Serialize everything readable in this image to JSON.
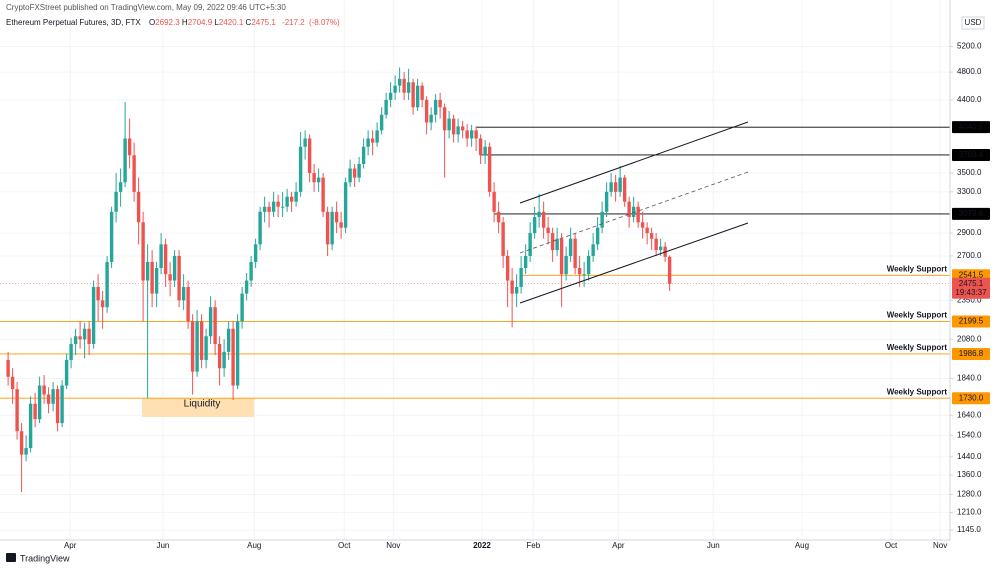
{
  "chart_data": {
    "type": "candlestick",
    "publisher": "CryptoFXStreet published on TradingView.com, May 09, 2022 09:46 UTC+5:30",
    "symbol": "Ethereum Perpetual Futures, 3D, FTX",
    "ohlc_prefixes": [
      "O",
      "H",
      "L",
      "C"
    ],
    "change": -217.2,
    "change_pct_label": "(-8.07%)",
    "currency": "USD",
    "countdown": "19:43:37",
    "logo": "TradingView",
    "annotation_box": "Liquidity",
    "up_color": "#26a69a",
    "down_color": "#ef5350",
    "log_scale": true,
    "grid": true,
    "open": [
      1950,
      1850,
      1780,
      1560,
      1450,
      1480,
      1700,
      1620,
      1800,
      1750,
      1700,
      1780,
      1600,
      1800,
      1950,
      2050,
      2100,
      2080,
      2150,
      2050,
      2450,
      2350,
      2300,
      2650,
      3100,
      3300,
      3400,
      3900,
      3700,
      3300,
      3000,
      2500,
      2650,
      2400,
      2600,
      2800,
      2550,
      2500,
      2700,
      2350,
      2450,
      2200,
      1880,
      2200,
      1950,
      2100,
      2300,
      2050,
      1900,
      2000,
      2150,
      1800,
      2200,
      2400,
      2500,
      2650,
      2800,
      3100,
      3150,
      3100,
      3200,
      3150,
      3150,
      3250,
      3200,
      3300,
      3800,
      3900,
      3500,
      3400,
      3450,
      3100,
      2800,
      3100,
      3000,
      2950,
      3400,
      3550,
      3450,
      3600,
      3800,
      3900,
      3850,
      4000,
      4200,
      4400,
      4500,
      4600,
      4700,
      4500,
      4650,
      4300,
      4600,
      4400,
      4100,
      4200,
      4400,
      4300,
      4000,
      4150,
      3950,
      4050,
      4000,
      3900,
      4000,
      3900,
      3700,
      3800,
      3300,
      3100,
      3000,
      2700,
      2500,
      2400,
      2450,
      2600,
      2700,
      2900,
      3050,
      3100,
      2950,
      2900,
      2750,
      2850,
      2550,
      2700,
      2850,
      2600,
      2550,
      2550,
      2700,
      2800,
      2950,
      3100,
      3300,
      3400,
      3300,
      3450,
      3200,
      3050,
      3150,
      3000,
      2950,
      2900,
      2850,
      2750,
      2780,
      2692.3
    ],
    "high": [
      2000,
      1900,
      1820,
      1600,
      1540,
      1740,
      1760,
      1850,
      1860,
      1790,
      1820,
      1800,
      1830,
      1990,
      2090,
      2150,
      2200,
      2190,
      2200,
      2500,
      2550,
      2420,
      2700,
      3150,
      3500,
      3550,
      4370,
      4150,
      3850,
      3450,
      3100,
      2800,
      2750,
      2650,
      2900,
      2850,
      2650,
      2750,
      2750,
      2550,
      2500,
      2250,
      2280,
      2250,
      2150,
      2380,
      2350,
      2100,
      2080,
      2200,
      2200,
      2250,
      2450,
      2560,
      2700,
      2850,
      3150,
      3250,
      3200,
      3300,
      3270,
      3300,
      3330,
      3300,
      3400,
      3980,
      4000,
      3950,
      3600,
      3550,
      3500,
      3150,
      3150,
      3200,
      3100,
      3450,
      3650,
      3600,
      3680,
      3900,
      4000,
      4000,
      4100,
      4300,
      4500,
      4650,
      4750,
      4870,
      4800,
      4850,
      4700,
      4700,
      4650,
      4450,
      4300,
      4480,
      4500,
      4350,
      4250,
      4200,
      4150,
      4120,
      4080,
      4070,
      4050,
      3950,
      3880,
      3850,
      3400,
      3200,
      3050,
      2750,
      2600,
      2550,
      2700,
      2800,
      3000,
      3150,
      3280,
      3200,
      3050,
      2950,
      2950,
      2900,
      2780,
      2950,
      2900,
      2700,
      2650,
      2750,
      2900,
      3050,
      3200,
      3400,
      3500,
      3480,
      3580,
      3480,
      3250,
      3250,
      3200,
      3100,
      3000,
      2950,
      2900,
      2850,
      2820,
      2704.9
    ],
    "low": [
      1800,
      1700,
      1520,
      1290,
      1420,
      1460,
      1580,
      1600,
      1700,
      1650,
      1660,
      1560,
      1580,
      1780,
      1900,
      1980,
      2020,
      1960,
      1980,
      2020,
      2200,
      2150,
      2260,
      2600,
      3000,
      3150,
      3350,
      3550,
      3200,
      2800,
      2200,
      1730,
      2300,
      2300,
      2550,
      2450,
      2380,
      2450,
      2300,
      2280,
      2150,
      1750,
      1850,
      1900,
      1900,
      2050,
      1980,
      1800,
      1850,
      1950,
      1720,
      1780,
      2150,
      2350,
      2450,
      2600,
      2750,
      3000,
      2950,
      3050,
      3050,
      3050,
      3100,
      3100,
      3150,
      3250,
      3650,
      3400,
      3300,
      3300,
      3050,
      2700,
      2750,
      2900,
      2850,
      2900,
      3350,
      3350,
      3400,
      3550,
      3700,
      3700,
      3800,
      3950,
      4150,
      4300,
      4400,
      4500,
      4400,
      4400,
      4200,
      4250,
      4300,
      3950,
      4000,
      4100,
      4150,
      3450,
      3900,
      3850,
      3850,
      3900,
      3800,
      3800,
      3750,
      3600,
      3600,
      3250,
      3000,
      2900,
      2600,
      2300,
      2160,
      2300,
      2400,
      2550,
      2650,
      2850,
      2950,
      2850,
      2800,
      2650,
      2700,
      2300,
      2500,
      2650,
      2550,
      2450,
      2450,
      2500,
      2650,
      2750,
      2900,
      3050,
      3250,
      3200,
      3250,
      3150,
      2950,
      3000,
      2950,
      2850,
      2800,
      2750,
      2700,
      2700,
      2650,
      2420.1
    ],
    "close": [
      1850,
      1780,
      1560,
      1450,
      1480,
      1700,
      1620,
      1800,
      1750,
      1700,
      1780,
      1600,
      1800,
      1950,
      2050,
      2100,
      2080,
      2150,
      2050,
      2450,
      2350,
      2300,
      2650,
      3100,
      3300,
      3400,
      3900,
      3700,
      3300,
      3000,
      2500,
      2650,
      2400,
      2600,
      2800,
      2550,
      2500,
      2700,
      2350,
      2450,
      2200,
      1880,
      2200,
      1950,
      2100,
      2300,
      2050,
      1900,
      2000,
      2150,
      1800,
      2200,
      2400,
      2500,
      2650,
      2800,
      3100,
      3150,
      3100,
      3200,
      3150,
      3150,
      3250,
      3200,
      3300,
      3800,
      3900,
      3500,
      3400,
      3450,
      3100,
      2800,
      3100,
      3000,
      2950,
      3400,
      3550,
      3450,
      3600,
      3800,
      3900,
      3850,
      4000,
      4200,
      4400,
      4500,
      4600,
      4700,
      4500,
      4650,
      4300,
      4600,
      4400,
      4100,
      4200,
      4400,
      4300,
      4000,
      4150,
      3950,
      4050,
      4000,
      3900,
      4000,
      3900,
      3700,
      3800,
      3300,
      3100,
      3000,
      2700,
      2500,
      2400,
      2450,
      2600,
      2700,
      2900,
      3050,
      3100,
      2950,
      2900,
      2750,
      2850,
      2550,
      2700,
      2850,
      2600,
      2550,
      2550,
      2700,
      2800,
      2950,
      3100,
      3300,
      3400,
      3300,
      3450,
      3200,
      3050,
      3150,
      3000,
      2950,
      2900,
      2850,
      2750,
      2780,
      2692.3,
      2475.1
    ],
    "xlim": [
      -1.8,
      209.3
    ],
    "xticks": [
      {
        "value": 13.8,
        "label": "Apr"
      },
      {
        "value": 34.4,
        "label": "Jun"
      },
      {
        "value": 54.7,
        "label": "Aug"
      },
      {
        "value": 74.7,
        "label": "Oct"
      },
      {
        "value": 85.6,
        "label": "Nov"
      },
      {
        "value": 105.3,
        "label": "2022"
      },
      {
        "value": 116.7,
        "label": "Feb"
      },
      {
        "value": 135.6,
        "label": "Apr"
      },
      {
        "value": 156.7,
        "label": "Jun"
      },
      {
        "value": 176.4,
        "label": "Aug"
      },
      {
        "value": 196.2,
        "label": "Oct"
      },
      {
        "value": 207.1,
        "label": "Nov"
      }
    ],
    "ylim": [
      1110,
      6015
    ],
    "yticks": [
      {
        "value": 5200,
        "label": "5200.0"
      },
      {
        "value": 4800,
        "label": "4800.0"
      },
      {
        "value": 4400,
        "label": "4400.0"
      },
      {
        "value": 3500,
        "label": "3500.0"
      },
      {
        "value": 3300,
        "label": "3300.0"
      },
      {
        "value": 2900,
        "label": "2900.0"
      },
      {
        "value": 2700,
        "label": "2700.0"
      },
      {
        "value": 2350,
        "label": "2350.0"
      },
      {
        "value": 2080,
        "label": "2080.0"
      },
      {
        "value": 1840,
        "label": "1840.0"
      },
      {
        "value": 1640,
        "label": "1640.0"
      },
      {
        "value": 1540,
        "label": "1540.0"
      },
      {
        "value": 1440,
        "label": "1440.0"
      },
      {
        "value": 1360,
        "label": "1360.0"
      },
      {
        "value": 1280,
        "label": "1280.0"
      },
      {
        "value": 1210,
        "label": "1210.0"
      },
      {
        "value": 1145,
        "label": "1145.0"
      }
    ],
    "levels": [
      {
        "value": 4040.5,
        "label": "4040.5",
        "color": "#000000",
        "from": 104
      },
      {
        "value": 3703.4,
        "label": "3703.4",
        "color": "#000000",
        "from": 105
      },
      {
        "value": 3079.6,
        "label": "3079.6",
        "color": "#000000",
        "from": 108
      },
      {
        "value": 2541.5,
        "label": "2541.5",
        "color": "#ff9800",
        "from": 114,
        "annotation": "Weekly Support"
      },
      {
        "value": 2199.5,
        "label": "2199.5",
        "color": "#ff9800",
        "from": -1.8,
        "annotation": "Weekly Support"
      },
      {
        "value": 1986.8,
        "label": "1986.8",
        "color": "#ff9800",
        "from": -1.8,
        "annotation": "Weekly Support"
      },
      {
        "value": 1730,
        "label": "1730.0",
        "color": "#ff9800",
        "from": -1.8,
        "annotation": "Weekly Support"
      }
    ]
  }
}
